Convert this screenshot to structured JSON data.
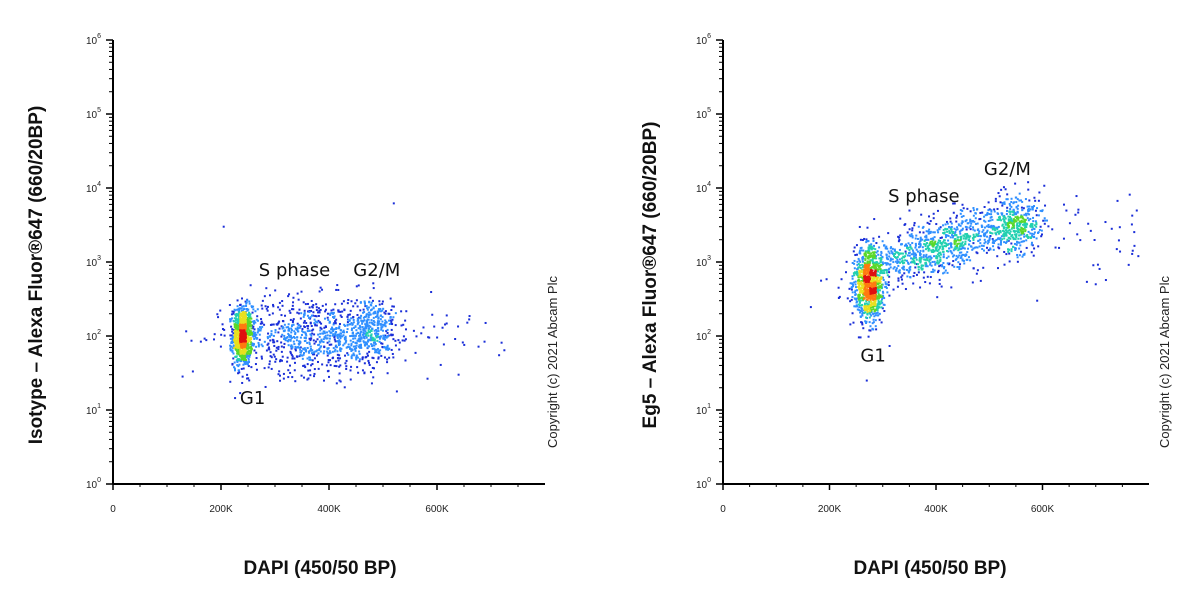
{
  "chart_data": [
    {
      "type": "scatter",
      "id": "left",
      "title": "",
      "xlabel": "DAPI (450/50 BP)",
      "ylabel": "Isotype – Alexa Fluor®647 (660/20BP)",
      "xlim": [
        0,
        800000
      ],
      "ylim": [
        1,
        1000000
      ],
      "yscale": "log",
      "xticks": [
        0,
        200000,
        400000,
        600000
      ],
      "xtick_labels": [
        "0",
        "200K",
        "400K",
        "600K"
      ],
      "yticks": [
        1,
        10,
        100,
        1000,
        10000,
        100000,
        1000000
      ],
      "ytick_labels": [
        {
          "base": "10",
          "exp": "0"
        },
        {
          "base": "10",
          "exp": "1"
        },
        {
          "base": "10",
          "exp": "2"
        },
        {
          "base": "10",
          "exp": "3"
        },
        {
          "base": "10",
          "exp": "4"
        },
        {
          "base": "10",
          "exp": "5"
        },
        {
          "base": "10",
          "exp": "6"
        }
      ],
      "copyright": "Copyright (c) 2021 Abcam Plc",
      "annotations": [
        {
          "text": "S phase",
          "x": 270000,
          "y": 650
        },
        {
          "text": "G2/M",
          "x": 445000,
          "y": 650
        },
        {
          "text": "G1",
          "x": 235000,
          "y": 12
        }
      ],
      "clusters": [
        {
          "x": 240000,
          "y": 100,
          "sx": 9000,
          "sy": 0.2,
          "n": 900
        },
        {
          "x": 370000,
          "y": 100,
          "sx": 75000,
          "sy": 0.26,
          "n": 850
        },
        {
          "x": 480000,
          "y": 120,
          "sx": 22000,
          "sy": 0.22,
          "n": 350
        },
        {
          "x": 620000,
          "y": 100,
          "sx": 70000,
          "sy": 0.25,
          "n": 25
        }
      ],
      "outliers": [
        [
          205000,
          3000
        ],
        [
          520000,
          6200
        ],
        [
          715000,
          55
        ],
        [
          640000,
          30
        ],
        [
          690000,
          150
        ]
      ],
      "colors": [
        "#1a2ed8",
        "#2f8fff",
        "#22d0b0",
        "#5ad82a",
        "#e8e020",
        "#ff7a10",
        "#e01010"
      ]
    },
    {
      "type": "scatter",
      "id": "right",
      "title": "",
      "xlabel": "DAPI (450/50 BP)",
      "ylabel": "Eg5 – Alexa Fluor®647 (660/20BP)",
      "xlim": [
        0,
        800000
      ],
      "ylim": [
        1,
        1000000
      ],
      "yscale": "log",
      "xticks": [
        0,
        200000,
        400000,
        600000
      ],
      "xtick_labels": [
        "0",
        "200K",
        "400K",
        "600K"
      ],
      "yticks": [
        1,
        10,
        100,
        1000,
        10000,
        100000,
        1000000
      ],
      "ytick_labels": [
        {
          "base": "10",
          "exp": "0"
        },
        {
          "base": "10",
          "exp": "1"
        },
        {
          "base": "10",
          "exp": "2"
        },
        {
          "base": "10",
          "exp": "3"
        },
        {
          "base": "10",
          "exp": "4"
        },
        {
          "base": "10",
          "exp": "5"
        },
        {
          "base": "10",
          "exp": "6"
        }
      ],
      "copyright": "Copyright (c) 2021 Abcam Plc",
      "annotations": [
        {
          "text": "S phase",
          "x": 310000,
          "y": 6500
        },
        {
          "text": "G2/M",
          "x": 490000,
          "y": 15000
        },
        {
          "text": "G1",
          "x": 258000,
          "y": 45
        }
      ],
      "clusters": [
        {
          "x": 275000,
          "y": 500,
          "sx": 14000,
          "sy": 0.25,
          "n": 900
        },
        {
          "x": 400000,
          "y": 1600,
          "sx": 70000,
          "sy": 0.2,
          "n": 900,
          "trend": true
        },
        {
          "x": 550000,
          "y": 3000,
          "sx": 25000,
          "sy": 0.2,
          "n": 400
        },
        {
          "x": 720000,
          "y": 2500,
          "sx": 60000,
          "sy": 0.25,
          "n": 45
        }
      ],
      "outliers": [
        [
          270000,
          25
        ],
        [
          590000,
          300
        ],
        [
          700000,
          500
        ],
        [
          780000,
          1200
        ]
      ],
      "colors": [
        "#1a2ed8",
        "#2f8fff",
        "#22d0b0",
        "#5ad82a",
        "#e8e020",
        "#ff7a10",
        "#e01010"
      ]
    }
  ]
}
